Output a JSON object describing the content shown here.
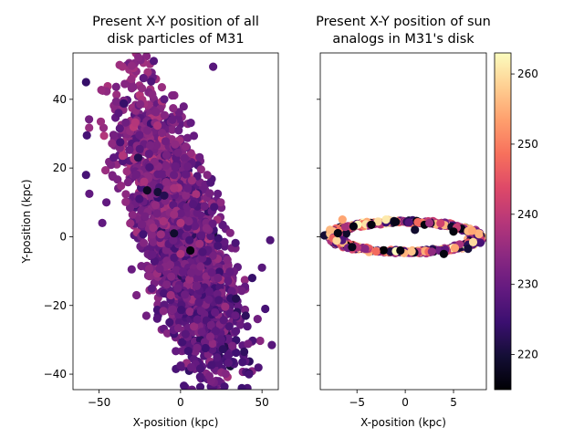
{
  "chart_data": [
    {
      "type": "scatter",
      "title": "Present X-Y position of all\ndisk particles of M31",
      "xlabel": "X-position (kpc)",
      "ylabel": "Y-position (kpc)",
      "xlim": [
        -66,
        60
      ],
      "ylim": [
        -44.5,
        53.5
      ],
      "xticks": [
        -50,
        0,
        50
      ],
      "yticks": [
        -40,
        -20,
        0,
        20,
        40
      ],
      "xtick_labels": [
        "−50",
        "0",
        "50"
      ],
      "ytick_labels": [
        "−40",
        "−20",
        "0",
        "20",
        "40"
      ],
      "grid": false,
      "colormap": "magma",
      "color_range": [
        215,
        263
      ],
      "distribution": {
        "shape": "elongated ellipse",
        "center": [
          0,
          0
        ],
        "major_axis_angle_deg": -52,
        "major_sigma": 25,
        "minor_sigma": 10,
        "n_points": 2600,
        "color_mean": 231,
        "color_sd": 3
      },
      "points": [
        {
          "x": 20,
          "y": 49.5,
          "c": 228
        },
        {
          "x": -58,
          "y": 45,
          "c": 224
        },
        {
          "x": -57.5,
          "y": 29.5,
          "c": 226
        },
        {
          "x": -10,
          "y": 40,
          "c": 229
        },
        {
          "x": -38,
          "y": 36,
          "c": 228
        },
        {
          "x": -25,
          "y": 25.5,
          "c": 228
        },
        {
          "x": -5,
          "y": 34,
          "c": 230
        },
        {
          "x": -20.5,
          "y": 13.5,
          "c": 218
        },
        {
          "x": -14,
          "y": 13,
          "c": 220
        },
        {
          "x": -10,
          "y": 12,
          "c": 222
        },
        {
          "x": -26,
          "y": 23,
          "c": 222
        },
        {
          "x": -3,
          "y": 20.5,
          "c": 230
        },
        {
          "x": -10.5,
          "y": 4.5,
          "c": 237
        },
        {
          "x": -4,
          "y": 6.5,
          "c": 236
        },
        {
          "x": 0,
          "y": 4,
          "c": 238
        },
        {
          "x": -4,
          "y": 1,
          "c": 219
        },
        {
          "x": 0,
          "y": -5,
          "c": 238
        },
        {
          "x": 5.5,
          "y": -1,
          "c": 226
        },
        {
          "x": 6,
          "y": -4,
          "c": 216
        },
        {
          "x": -6,
          "y": -17,
          "c": 236
        },
        {
          "x": 0,
          "y": -37.5,
          "c": 228
        },
        {
          "x": 6.5,
          "y": -38,
          "c": 230
        },
        {
          "x": 42,
          "y": -40,
          "c": 226
        },
        {
          "x": 56,
          "y": -31.5,
          "c": 228
        },
        {
          "x": 52,
          "y": -21,
          "c": 226
        },
        {
          "x": 55,
          "y": -1,
          "c": 227
        },
        {
          "x": 50,
          "y": -9,
          "c": 228
        },
        {
          "x": 38,
          "y": -36.5,
          "c": 226
        },
        {
          "x": -48,
          "y": 4,
          "c": 229
        },
        {
          "x": -45.5,
          "y": 10,
          "c": 229
        },
        {
          "x": -56,
          "y": 12.5,
          "c": 229
        },
        {
          "x": -58,
          "y": 18,
          "c": 226
        },
        {
          "x": -37,
          "y": 27.5,
          "c": 226
        },
        {
          "x": -30,
          "y": -9.5,
          "c": 230
        },
        {
          "x": -27,
          "y": -17,
          "c": 232
        },
        {
          "x": -21,
          "y": -23,
          "c": 231
        },
        {
          "x": 40,
          "y": -23,
          "c": 223
        },
        {
          "x": 34,
          "y": -18,
          "c": 222
        },
        {
          "x": 44,
          "y": -12,
          "c": 224
        }
      ]
    },
    {
      "type": "scatter",
      "title": "Present X-Y position of sun\nanalogs in M31's disk",
      "xlabel": "X-position (kpc)",
      "ylabel": "",
      "xlim": [
        -8.8,
        8.4
      ],
      "ylim": [
        -44.5,
        53.5
      ],
      "xticks": [
        -5,
        0,
        5
      ],
      "xtick_labels": [
        "−5",
        "0",
        "5"
      ],
      "grid": false,
      "colormap": "magma",
      "color_range": [
        215,
        263
      ],
      "distribution": {
        "shape": "elliptical ring",
        "center": [
          0,
          0
        ],
        "x_radius": 7.5,
        "y_radius": 4.4,
        "tilt_deg": -4,
        "n_points": 650,
        "color_range": [
          215,
          263
        ]
      },
      "points": [
        {
          "x": -3.5,
          "y": 3.5,
          "c": 216
        },
        {
          "x": -2,
          "y": 5,
          "c": 261
        },
        {
          "x": 2,
          "y": 3.5,
          "c": 216
        },
        {
          "x": 2.5,
          "y": 4,
          "c": 236
        },
        {
          "x": 5,
          "y": 1.5,
          "c": 216
        },
        {
          "x": -0.5,
          "y": -4,
          "c": 216
        },
        {
          "x": 4,
          "y": -5,
          "c": 216
        },
        {
          "x": 6.5,
          "y": -3.5,
          "c": 220
        },
        {
          "x": -7.8,
          "y": 2,
          "c": 256
        },
        {
          "x": -6.5,
          "y": 5,
          "c": 254
        },
        {
          "x": -5.5,
          "y": -3,
          "c": 217
        },
        {
          "x": 1,
          "y": 2,
          "c": 219
        }
      ]
    },
    {
      "type": "colorbar",
      "colormap": "magma",
      "vlim": [
        215,
        263
      ],
      "ticks": [
        220,
        230,
        240,
        250,
        260
      ],
      "tick_labels": [
        "220",
        "230",
        "240",
        "250",
        "260"
      ]
    }
  ]
}
